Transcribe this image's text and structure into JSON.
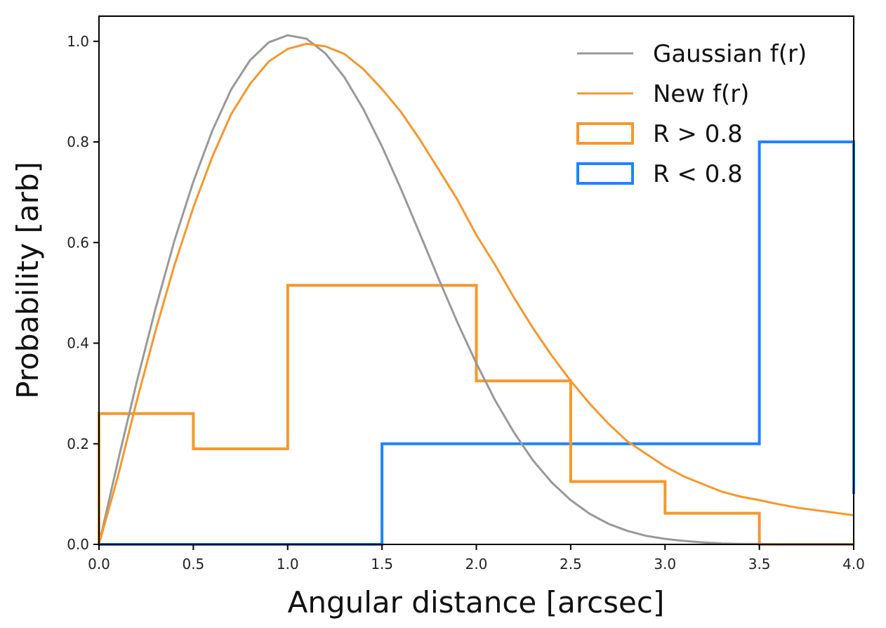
{
  "chart_data": {
    "type": "line",
    "xlabel": "Angular distance [arcsec]",
    "ylabel": "Probability [arb]",
    "xlim": [
      0.0,
      4.0
    ],
    "ylim": [
      0.0,
      1.05
    ],
    "xticks": [
      "0.0",
      "0.5",
      "1.0",
      "1.5",
      "2.0",
      "2.5",
      "3.0",
      "3.5",
      "4.0"
    ],
    "yticks": [
      "0.0",
      "0.2",
      "0.4",
      "0.6",
      "0.8",
      "1.0"
    ],
    "legend_position": "top-right",
    "grid": false,
    "series": [
      {
        "name": "Gaussian f(r)",
        "kind": "line",
        "color": "#999999",
        "x": [
          0.0,
          0.1,
          0.2,
          0.3,
          0.4,
          0.5,
          0.6,
          0.7,
          0.8,
          0.9,
          1.0,
          1.1,
          1.2,
          1.3,
          1.4,
          1.5,
          1.6,
          1.7,
          1.8,
          1.9,
          2.0,
          2.1,
          2.2,
          2.3,
          2.4,
          2.5,
          2.6,
          2.7,
          2.8,
          2.9,
          3.0,
          3.1,
          3.2,
          3.3,
          3.4,
          3.5,
          3.6,
          3.7,
          3.8,
          3.9,
          4.0
        ],
        "y": [
          0.0,
          0.165,
          0.323,
          0.469,
          0.604,
          0.721,
          0.822,
          0.904,
          0.962,
          0.998,
          1.012,
          1.005,
          0.976,
          0.929,
          0.866,
          0.791,
          0.707,
          0.618,
          0.528,
          0.441,
          0.36,
          0.286,
          0.222,
          0.167,
          0.123,
          0.088,
          0.061,
          0.041,
          0.027,
          0.017,
          0.011,
          0.007,
          0.004,
          0.002,
          0.001,
          0.001,
          0.0,
          0.0,
          0.0,
          0.0,
          0.0
        ]
      },
      {
        "name": "New f(r)",
        "kind": "line",
        "color": "#f7972c",
        "x": [
          0.0,
          0.1,
          0.2,
          0.3,
          0.4,
          0.5,
          0.6,
          0.7,
          0.8,
          0.9,
          1.0,
          1.1,
          1.2,
          1.3,
          1.4,
          1.5,
          1.6,
          1.7,
          1.8,
          1.9,
          2.0,
          2.1,
          2.2,
          2.3,
          2.4,
          2.5,
          2.6,
          2.7,
          2.8,
          2.9,
          3.0,
          3.1,
          3.2,
          3.3,
          3.4,
          3.5,
          3.6,
          3.7,
          3.8,
          3.9,
          4.0
        ],
        "y": [
          0.0,
          0.135,
          0.285,
          0.425,
          0.555,
          0.67,
          0.77,
          0.855,
          0.915,
          0.96,
          0.985,
          0.995,
          0.99,
          0.975,
          0.945,
          0.905,
          0.86,
          0.805,
          0.745,
          0.685,
          0.615,
          0.555,
          0.49,
          0.43,
          0.375,
          0.325,
          0.28,
          0.24,
          0.205,
          0.18,
          0.155,
          0.135,
          0.12,
          0.105,
          0.095,
          0.088,
          0.08,
          0.073,
          0.068,
          0.063,
          0.058
        ]
      },
      {
        "name": "R > 0.8",
        "kind": "step-histogram",
        "color": "#f7972c",
        "bin_edges": [
          0.0,
          0.5,
          1.0,
          1.5,
          2.0,
          2.5,
          3.0,
          3.5,
          4.0
        ],
        "values": [
          0.26,
          0.19,
          0.515,
          0.515,
          0.325,
          0.125,
          0.062,
          0.0
        ]
      },
      {
        "name": "R < 0.8",
        "kind": "step-histogram",
        "color": "#1a85ff",
        "bin_edges": [
          0.0,
          0.5,
          1.0,
          1.5,
          2.0,
          2.5,
          3.0,
          3.5,
          4.0
        ],
        "values": [
          0.0,
          0.0,
          0.0,
          0.2,
          0.2,
          0.2,
          0.2,
          0.8
        ],
        "end_drop": 0.1
      }
    ]
  }
}
